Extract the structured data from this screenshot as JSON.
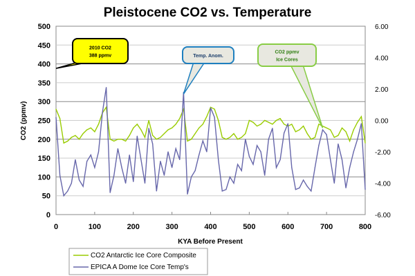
{
  "chart_data": {
    "type": "line",
    "title": "Pleistocene CO2 vs. Temperature",
    "xlabel": "KYA Before Present",
    "ylabel": "CO2 (ppmv)",
    "y2label": "",
    "xlim": [
      0,
      800
    ],
    "ylim": [
      0,
      500
    ],
    "y2lim": [
      -6,
      6
    ],
    "grid": true,
    "legend_position": "bottom-left",
    "x_ticks": [
      "0",
      "100",
      "200",
      "300",
      "400",
      "500",
      "600",
      "700",
      "800"
    ],
    "y_ticks": [
      "0",
      "50",
      "100",
      "150",
      "200",
      "250",
      "300",
      "350",
      "400",
      "450",
      "500"
    ],
    "y2_ticks": [
      "-6.00",
      "-4.00",
      "-2.00",
      "0.00",
      "2.00",
      "4.00",
      "6.00"
    ],
    "x": [
      0,
      10,
      20,
      30,
      40,
      50,
      60,
      70,
      80,
      90,
      100,
      110,
      120,
      130,
      140,
      150,
      160,
      170,
      180,
      190,
      200,
      210,
      220,
      230,
      240,
      250,
      260,
      270,
      280,
      290,
      300,
      310,
      320,
      330,
      340,
      350,
      360,
      370,
      380,
      390,
      400,
      410,
      420,
      430,
      440,
      450,
      460,
      470,
      480,
      490,
      500,
      510,
      520,
      530,
      540,
      550,
      560,
      570,
      580,
      590,
      600,
      610,
      620,
      630,
      640,
      650,
      660,
      670,
      680,
      690,
      700,
      710,
      720,
      730,
      740,
      750,
      760,
      770,
      780,
      790,
      800
    ],
    "series": [
      {
        "name": "CO2 Antarctic Ice Core Composite",
        "axis": "left",
        "color": "#99cc00",
        "values": [
          280,
          255,
          190,
          195,
          205,
          210,
          200,
          215,
          225,
          230,
          220,
          240,
          270,
          285,
          200,
          195,
          200,
          200,
          195,
          210,
          230,
          240,
          225,
          205,
          250,
          210,
          200,
          205,
          215,
          225,
          230,
          240,
          255,
          280,
          195,
          200,
          215,
          230,
          240,
          260,
          285,
          280,
          250,
          205,
          200,
          205,
          215,
          200,
          205,
          215,
          250,
          245,
          235,
          240,
          250,
          245,
          240,
          250,
          255,
          240,
          235,
          240,
          220,
          225,
          235,
          215,
          200,
          205,
          240,
          235,
          230,
          225,
          205,
          210,
          230,
          220,
          195,
          225,
          245,
          260,
          190
        ]
      },
      {
        "name": "EPICA A Dome Ice Core Temp's",
        "axis": "right",
        "color": "#6666aa",
        "values": [
          0.2,
          -3.5,
          -4.8,
          -4.5,
          -4.0,
          -2.5,
          -3.8,
          -4.2,
          -2.6,
          -2.2,
          -3.0,
          -2.0,
          0.5,
          2.1,
          -4.6,
          -3.5,
          -1.8,
          -3.0,
          -4.0,
          -2.2,
          -3.9,
          -1.0,
          -2.5,
          -4.0,
          -0.5,
          -1.5,
          -4.5,
          -2.6,
          -3.5,
          -2.0,
          -3.0,
          -1.8,
          -2.5,
          1.8,
          -4.7,
          -3.6,
          -3.2,
          -2.2,
          -1.3,
          -2.0,
          0.8,
          0.2,
          -2.5,
          -4.5,
          -4.4,
          -3.6,
          -4.0,
          -2.8,
          -3.2,
          -1.2,
          -2.3,
          -2.8,
          -1.6,
          -2.0,
          -3.5,
          -1.2,
          -0.5,
          -3.0,
          -2.5,
          -0.8,
          -0.2,
          -3.0,
          -4.4,
          -4.3,
          -3.8,
          -4.2,
          -4.5,
          -3.0,
          -1.6,
          -0.6,
          -0.9,
          -2.5,
          -4.0,
          -1.5,
          -2.5,
          -4.3,
          -3.0,
          -2.0,
          -1.2,
          -0.2,
          -4.4
        ]
      }
    ],
    "annotations": [
      {
        "lines": [
          "2010 CO2",
          "388 ppmv"
        ],
        "x": 0,
        "y": 388,
        "color": "#ffff00"
      },
      {
        "lines": [
          "Temp. Anom."
        ],
        "x": 330,
        "y": 320,
        "color": "#1e7fbf"
      },
      {
        "lines": [
          "CO2 ppmv",
          "Ice Cores"
        ],
        "x": 690,
        "y": 230,
        "color": "#88cc44"
      }
    ]
  }
}
